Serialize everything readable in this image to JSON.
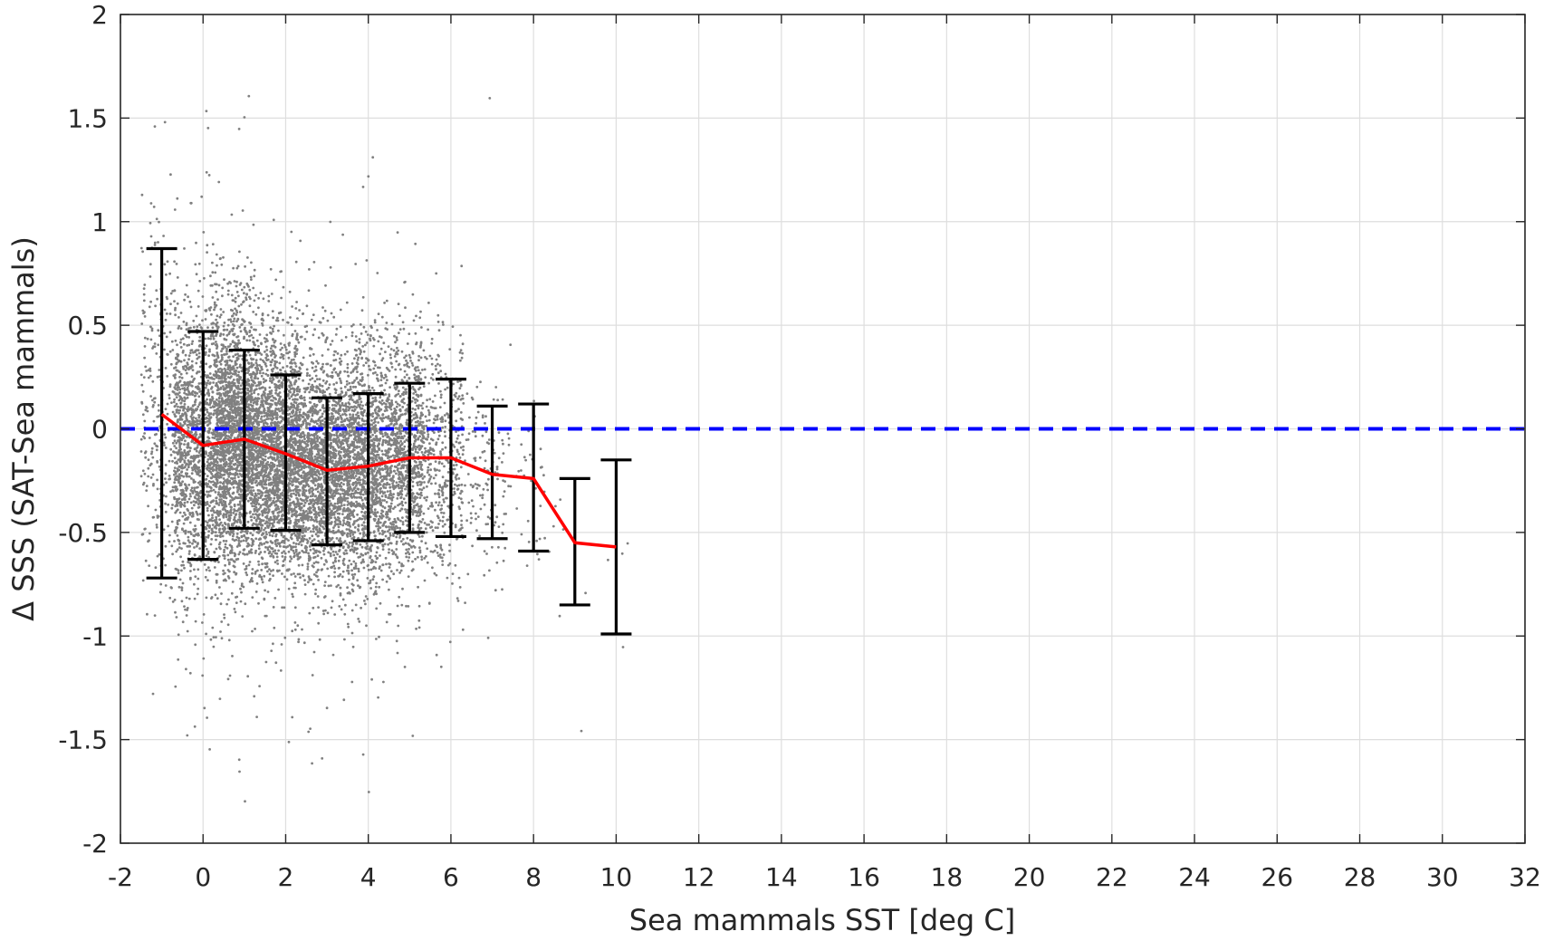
{
  "chart_data": {
    "type": "scatter",
    "title": "",
    "xlabel": "Sea mammals SST [deg C]",
    "ylabel": "Δ SSS (SAT-Sea mammals)",
    "xlim": [
      -2,
      32
    ],
    "ylim": [
      -2,
      2
    ],
    "xticks": [
      -2,
      0,
      2,
      4,
      6,
      8,
      10,
      12,
      14,
      16,
      18,
      20,
      22,
      24,
      26,
      28,
      30,
      32
    ],
    "yticks": [
      -2,
      -1.5,
      -1,
      -0.5,
      0,
      0.5,
      1,
      1.5,
      2
    ],
    "xtick_labels": [
      "-2",
      "0",
      "2",
      "4",
      "6",
      "8",
      "10",
      "12",
      "14",
      "16",
      "18",
      "20",
      "22",
      "24",
      "26",
      "28",
      "30",
      "32"
    ],
    "ytick_labels": [
      "-2",
      "-1.5",
      "-1",
      "-0.5",
      "0",
      "0.5",
      "1",
      "1.5",
      "2"
    ],
    "grid": true,
    "legend": "none",
    "reference_line": {
      "y": 0,
      "style": "dashed",
      "color": "#0000ff"
    },
    "mean_line": {
      "color": "#ff0000",
      "x": [
        -1,
        0,
        1,
        2,
        3,
        4,
        5,
        6,
        7,
        8,
        9,
        10
      ],
      "y": [
        0.07,
        -0.08,
        -0.05,
        -0.12,
        -0.2,
        -0.18,
        -0.14,
        -0.14,
        -0.22,
        -0.24,
        -0.55,
        -0.57
      ]
    },
    "error_bars": {
      "color": "#000000",
      "x": [
        -1,
        0,
        1,
        2,
        3,
        4,
        5,
        6,
        7,
        8,
        9,
        10
      ],
      "upper": [
        0.87,
        0.47,
        0.38,
        0.26,
        0.15,
        0.17,
        0.22,
        0.24,
        0.11,
        0.12,
        -0.24,
        -0.15
      ],
      "lower": [
        -0.72,
        -0.63,
        -0.48,
        -0.49,
        -0.56,
        -0.54,
        -0.5,
        -0.52,
        -0.53,
        -0.59,
        -0.85,
        -0.99
      ]
    },
    "scatter": {
      "color": "#808080",
      "note_bins": [
        {
          "x_center": -1,
          "mean": 0.07,
          "spread": 0.4,
          "count": 350
        },
        {
          "x_center": 0,
          "mean": -0.08,
          "spread": 0.35,
          "count": 1300
        },
        {
          "x_center": 1,
          "mean": -0.05,
          "spread": 0.3,
          "count": 2200
        },
        {
          "x_center": 2,
          "mean": -0.12,
          "spread": 0.28,
          "count": 1900
        },
        {
          "x_center": 3,
          "mean": -0.2,
          "spread": 0.26,
          "count": 1600
        },
        {
          "x_center": 4,
          "mean": -0.18,
          "spread": 0.27,
          "count": 1500
        },
        {
          "x_center": 5,
          "mean": -0.14,
          "spread": 0.27,
          "count": 1100
        },
        {
          "x_center": 6,
          "mean": -0.14,
          "spread": 0.28,
          "count": 450
        },
        {
          "x_center": 7,
          "mean": -0.22,
          "spread": 0.24,
          "count": 120
        },
        {
          "x_center": 8,
          "mean": -0.24,
          "spread": 0.27,
          "count": 40
        },
        {
          "x_center": 9,
          "mean": -0.55,
          "spread": 0.2,
          "count": 8
        },
        {
          "x_center": 10,
          "mean": -0.57,
          "spread": 0.3,
          "count": 4
        }
      ]
    }
  }
}
